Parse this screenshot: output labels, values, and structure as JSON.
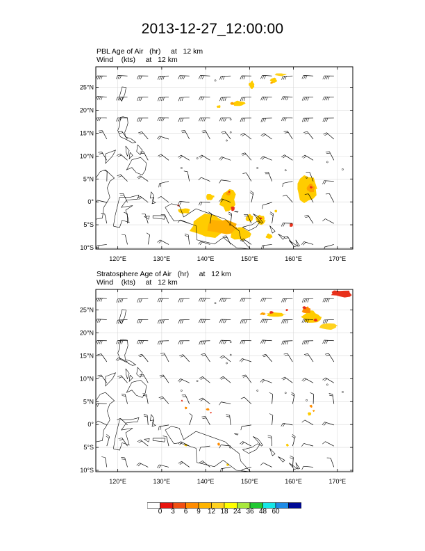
{
  "main_title": "2013-12-27_12:00:00",
  "panels": [
    {
      "title_line1": "PBL Age of Air   (hr)     at   12 km",
      "title_line2": "Wind    (kts)     at   12 km",
      "lat_labels": [
        "25°N",
        "20°N",
        "15°N",
        "10°N",
        "5°N",
        "0°",
        "5°S",
        "10°S"
      ],
      "lon_labels": [
        "120°E",
        "130°E",
        "140°E",
        "150°E",
        "160°E",
        "170°E"
      ],
      "blobs": [
        {
          "lon": 155.5,
          "lat": 26.5,
          "rx": 5,
          "ry": 4,
          "c": "#ffcc00"
        },
        {
          "lon": 150.5,
          "lat": 25.5,
          "rx": 4,
          "ry": 6,
          "c": "#ffcc00"
        },
        {
          "lon": 157,
          "lat": 27.8,
          "rx": 9,
          "ry": 2,
          "c": "#ffd21e"
        },
        {
          "lon": 155,
          "lat": 26.0,
          "rx": 2,
          "ry": 1.5,
          "c": "#ffa000"
        },
        {
          "lon": 147.5,
          "lat": 21.5,
          "rx": 9,
          "ry": 4,
          "c": "#ffcc00"
        },
        {
          "lon": 146,
          "lat": 21.5,
          "rx": 3,
          "ry": 2,
          "c": "#ffa000"
        },
        {
          "lon": 143,
          "lat": 20.8,
          "rx": 3,
          "ry": 2,
          "c": "#ffcc00"
        },
        {
          "lon": 145,
          "lat": 0.5,
          "rx": 12,
          "ry": 16,
          "c": "#ffcc00"
        },
        {
          "lon": 145.2,
          "lat": 1.8,
          "rx": 4,
          "ry": 3,
          "c": "#ffa000"
        },
        {
          "lon": 145.4,
          "lat": 2.2,
          "rx": 1.6,
          "ry": 1.6,
          "c": "#e8301a"
        },
        {
          "lon": 141,
          "lat": 1.0,
          "rx": 6,
          "ry": 5,
          "c": "#ffcc00"
        },
        {
          "lon": 163,
          "lat": 2.8,
          "rx": 14,
          "ry": 18,
          "c": "#ffcc00"
        },
        {
          "lon": 164,
          "lat": 3.0,
          "rx": 6,
          "ry": 6,
          "c": "#ffa000"
        },
        {
          "lon": 164,
          "lat": 3.2,
          "rx": 2,
          "ry": 2,
          "c": "#e8301a"
        },
        {
          "lon": 141,
          "lat": -5.2,
          "rx": 30,
          "ry": 16,
          "c": "#ffcc00"
        },
        {
          "lon": 144,
          "lat": -5.5,
          "rx": 24,
          "ry": 12,
          "c": "#ffb000"
        },
        {
          "lon": 135,
          "lat": -2.0,
          "rx": 9,
          "ry": 4,
          "c": "#ffcc00"
        },
        {
          "lon": 133.8,
          "lat": -0.8,
          "rx": 1.5,
          "ry": 1.5,
          "c": "#e8301a"
        },
        {
          "lon": 148,
          "lat": -7.0,
          "rx": 14,
          "ry": 10,
          "c": "#ffcc00"
        },
        {
          "lon": 152.5,
          "lat": -4.0,
          "rx": 7,
          "ry": 7,
          "c": "#ffcc00"
        },
        {
          "lon": 152.6,
          "lat": -3.6,
          "rx": 1.6,
          "ry": 1.6,
          "c": "#e8301a"
        },
        {
          "lon": 150,
          "lat": -3.5,
          "rx": 6,
          "ry": 6,
          "c": "#ffcc00"
        },
        {
          "lon": 146.2,
          "lat": -1.5,
          "rx": 3,
          "ry": 3,
          "c": "#e8301a"
        },
        {
          "lon": 154.5,
          "lat": -7.5,
          "rx": 5,
          "ry": 4,
          "c": "#ffcc00"
        },
        {
          "lon": 159.5,
          "lat": -5.0,
          "rx": 3,
          "ry": 3,
          "c": "#e8301a"
        },
        {
          "lon": 156,
          "lat": -2.0,
          "rx": 2,
          "ry": 2,
          "c": "#ffcc00"
        }
      ]
    },
    {
      "title_line1": "Stratosphere Age of Air   (hr)     at   12 km",
      "title_line2": "Wind    (kts)     at   12 km",
      "lat_labels": [
        "25°N",
        "20°N",
        "15°N",
        "10°N",
        "5°N",
        "0°",
        "5°S",
        "10°S"
      ],
      "lon_labels": [
        "120°E",
        "130°E",
        "140°E",
        "150°E",
        "160°E",
        "170°E"
      ],
      "blobs": [
        {
          "lon": 171,
          "lat": 28.6,
          "rx": 16,
          "ry": 5,
          "c": "#e8301a"
        },
        {
          "lon": 164,
          "lat": 23.5,
          "rx": 14,
          "ry": 9,
          "c": "#ffcc00"
        },
        {
          "lon": 168,
          "lat": 21.5,
          "rx": 14,
          "ry": 5,
          "c": "#ffd21e"
        },
        {
          "lon": 163,
          "lat": 25.0,
          "rx": 7,
          "ry": 5,
          "c": "#ff8c00"
        },
        {
          "lon": 162.5,
          "lat": 25.5,
          "rx": 3,
          "ry": 2,
          "c": "#e8301a"
        },
        {
          "lon": 165,
          "lat": 22.8,
          "rx": 3,
          "ry": 2,
          "c": "#e8301a"
        },
        {
          "lon": 156,
          "lat": 24.0,
          "rx": 14,
          "ry": 3,
          "c": "#ffcc00"
        },
        {
          "lon": 155,
          "lat": 24.5,
          "rx": 3,
          "ry": 2,
          "c": "#e8301a"
        },
        {
          "lon": 153,
          "lat": 24.2,
          "rx": 4,
          "ry": 2,
          "c": "#ffa000"
        },
        {
          "lon": 158.5,
          "lat": 25.0,
          "rx": 2,
          "ry": 1.5,
          "c": "#e8301a"
        },
        {
          "lon": 135.5,
          "lat": 3.6,
          "rx": 2,
          "ry": 2,
          "c": "#ff8c00"
        },
        {
          "lon": 134.6,
          "lat": 5.2,
          "rx": 1.2,
          "ry": 1.2,
          "c": "#e8301a"
        },
        {
          "lon": 140.5,
          "lat": 3.3,
          "rx": 2.5,
          "ry": 2,
          "c": "#ff8c00"
        },
        {
          "lon": 141.2,
          "lat": 2.6,
          "rx": 1.2,
          "ry": 1.2,
          "c": "#e8301a"
        },
        {
          "lon": 164.0,
          "lat": 4.0,
          "rx": 2,
          "ry": 2,
          "c": "#ff8c00"
        },
        {
          "lon": 163.6,
          "lat": 2.3,
          "rx": 2.5,
          "ry": 2.5,
          "c": "#ffcc00"
        },
        {
          "lon": 164.6,
          "lat": 3.0,
          "rx": 1.5,
          "ry": 1.5,
          "c": "#ffa000"
        },
        {
          "lon": 145.0,
          "lat": -8.8,
          "rx": 2,
          "ry": 2,
          "c": "#ffcc00"
        },
        {
          "lon": 143.0,
          "lat": -4.3,
          "rx": 2,
          "ry": 2,
          "c": "#ff8c00"
        },
        {
          "lon": 135.5,
          "lat": -4.5,
          "rx": 2,
          "ry": 2,
          "c": "#ffcc00"
        },
        {
          "lon": 158.6,
          "lat": -4.5,
          "rx": 2,
          "ry": 2,
          "c": "#ffcc00"
        }
      ]
    }
  ],
  "colorbar": {
    "colors": [
      "#ffffff",
      "#e8140e",
      "#f04f12",
      "#ff8c00",
      "#ffb400",
      "#ffd21e",
      "#ffff00",
      "#a8e83c",
      "#20c832",
      "#14e6e6",
      "#1e8ce6",
      "#000a96"
    ],
    "labels": [
      "0",
      "3",
      "6",
      "9",
      "12",
      "18",
      "24",
      "36",
      "48",
      "60"
    ]
  }
}
